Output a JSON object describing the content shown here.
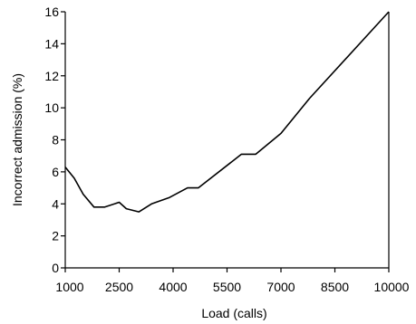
{
  "chart_data": {
    "type": "line",
    "title": "",
    "xlabel": "Load (calls)",
    "ylabel": "Incorrect admission  (%)",
    "xlim": [
      1000,
      10000
    ],
    "ylim": [
      0,
      16
    ],
    "grid": false,
    "legend": "none",
    "line_color": "#000000",
    "x_ticks": [
      1000,
      2500,
      4000,
      5500,
      7000,
      8500,
      10000
    ],
    "y_ticks": [
      0,
      2,
      4,
      6,
      8,
      10,
      12,
      14,
      16
    ],
    "series": [
      {
        "x": [
          1000,
          1250,
          1500,
          1800,
          2100,
          2500,
          2700,
          3050,
          3400,
          3900,
          4400,
          4700,
          5900,
          6300,
          7000,
          7800,
          10000
        ],
        "y": [
          6.3,
          5.6,
          4.6,
          3.8,
          3.8,
          4.1,
          3.7,
          3.5,
          4.0,
          4.4,
          5.0,
          5.0,
          7.1,
          7.1,
          8.4,
          10.6,
          16.0
        ]
      }
    ]
  }
}
